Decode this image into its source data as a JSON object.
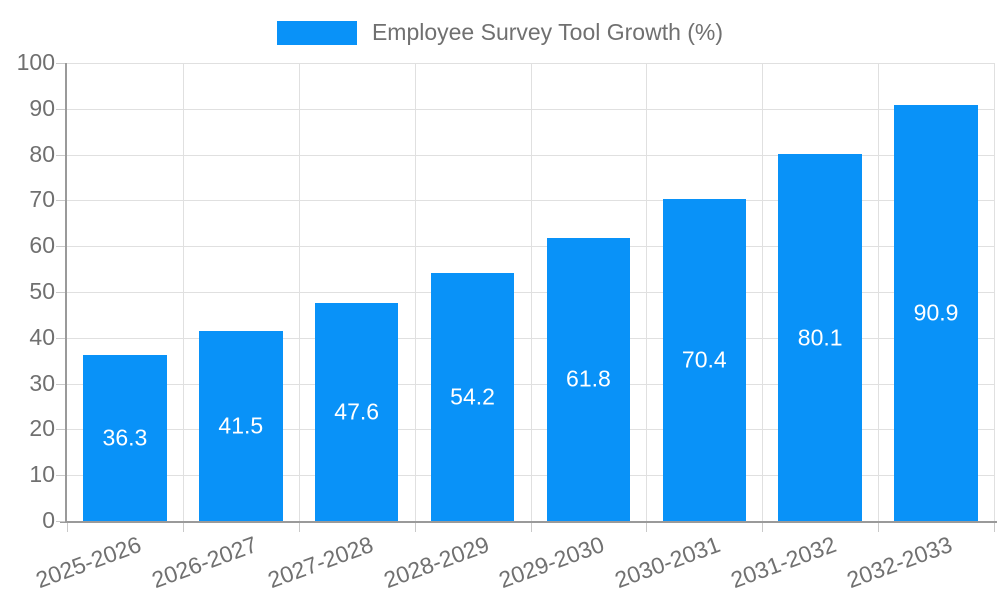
{
  "legend": {
    "label": "Employee Survey Tool Growth (%)"
  },
  "chart_data": {
    "type": "bar",
    "title": "Employee Survey Tool Growth (%)",
    "categories": [
      "2025-2026",
      "2026-2027",
      "2027-2028",
      "2028-2029",
      "2029-2030",
      "2030-2031",
      "2031-2032",
      "2032-2033"
    ],
    "values": [
      36.3,
      41.5,
      47.6,
      54.2,
      61.8,
      70.4,
      80.1,
      90.9
    ],
    "value_labels": [
      "36.3",
      "41.5",
      "47.6",
      "54.2",
      "61.8",
      "70.4",
      "80.1",
      "90.9"
    ],
    "xlabel": "",
    "ylabel": "",
    "ylim": [
      0,
      100
    ],
    "ytick_step": 10,
    "grid": true,
    "legend_position": "top",
    "bar_width_fraction": 0.72,
    "colors": {
      "bar": "#0992f8",
      "value_label": "#ffffff",
      "axis": "#9a9a9a",
      "gridline": "#e0e0e0",
      "tick": "#c9c9c9",
      "tick_label": "#707070"
    }
  }
}
